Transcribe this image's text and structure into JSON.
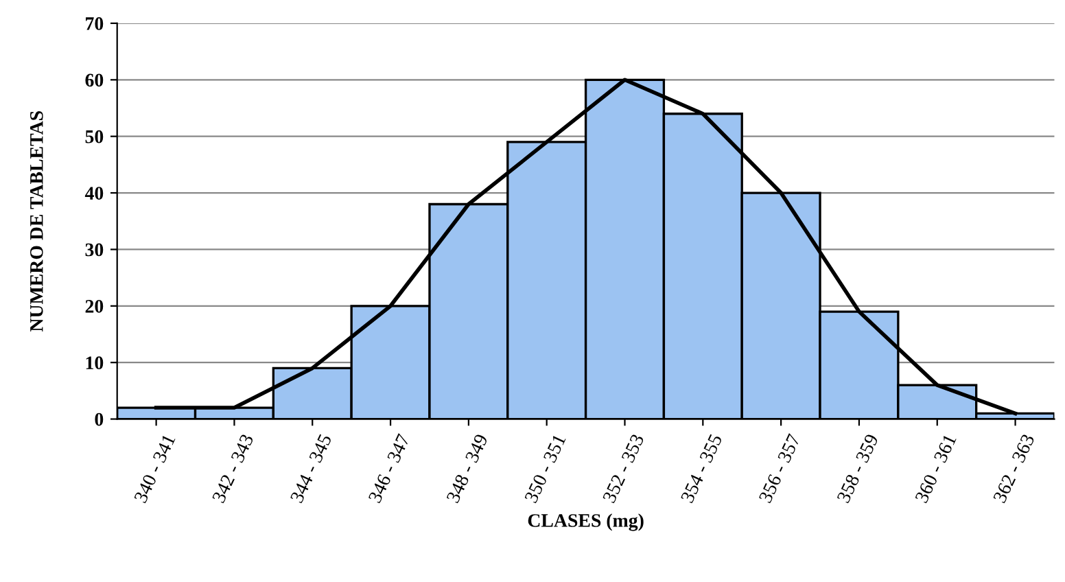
{
  "chart_data": {
    "type": "bar",
    "xlabel": "CLASES (mg)",
    "ylabel": "NUMERO DE TABLETAS",
    "categories": [
      "340 - 341",
      "342 - 343",
      "344 - 345",
      "346 - 347",
      "348 - 349",
      "350 - 351",
      "352 - 353",
      "354 - 355",
      "356 - 357",
      "358 - 359",
      "360 - 361",
      "362 - 363"
    ],
    "series": [
      {
        "color": "#9cc3f2",
        "values": [
          2,
          2,
          9,
          20,
          38,
          49,
          60,
          54,
          40,
          19,
          6,
          1
        ]
      },
      {
        "type": "line",
        "color": "#000000",
        "values": [
          2,
          2,
          9,
          20,
          38,
          49,
          60,
          54,
          40,
          19,
          6,
          1
        ]
      }
    ],
    "ylim": [
      0,
      70
    ],
    "yticks": [
      0,
      10,
      20,
      30,
      40,
      50,
      60,
      70
    ],
    "grid": "y",
    "legend": false
  }
}
